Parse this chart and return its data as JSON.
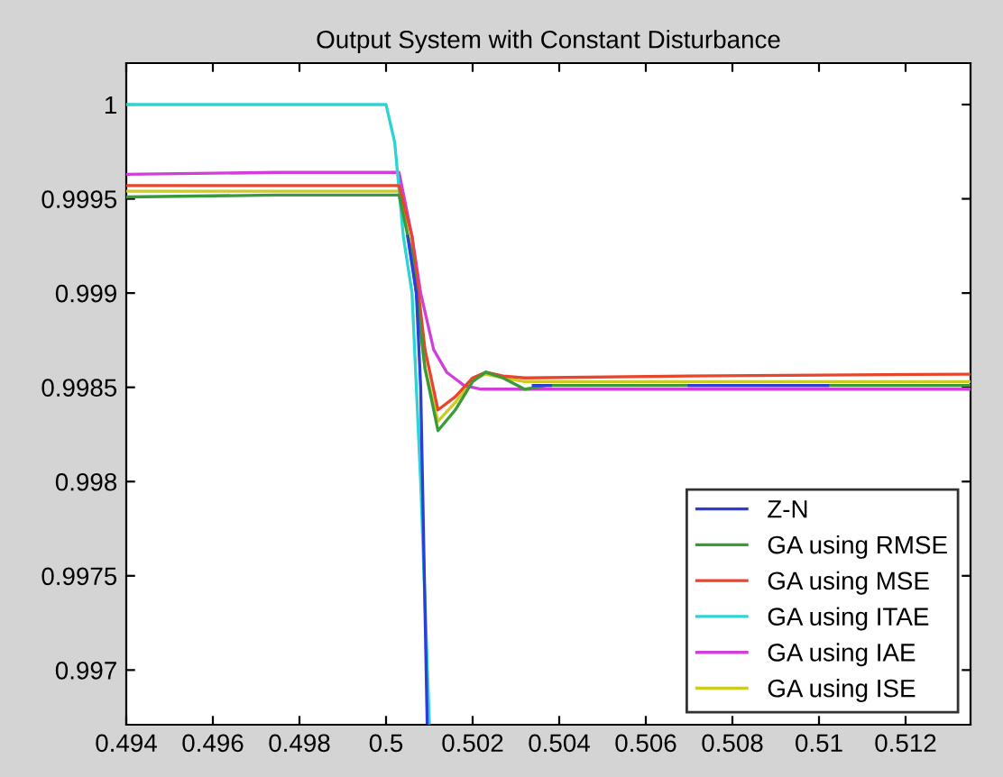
{
  "chart_data": {
    "type": "line",
    "title": "Output System with Constant Disturbance",
    "xlim": [
      0.494,
      0.5135
    ],
    "ylim": [
      0.99671,
      1.00022
    ],
    "xticks": [
      0.494,
      0.496,
      0.498,
      0.5,
      0.502,
      0.504,
      0.506,
      0.508,
      0.51,
      0.512
    ],
    "yticks": [
      0.997,
      0.9975,
      0.998,
      0.9985,
      0.999,
      0.9995,
      1
    ],
    "grid": false,
    "legend": "bottom right",
    "marker": "none",
    "line_style": "solid",
    "series": [
      {
        "name": "Z-N",
        "color": "#2b3fd6",
        "x": [
          0.5005,
          0.5007,
          0.5008,
          0.50095,
          0.5031,
          0.5034,
          0.5038,
          0.5069,
          0.507,
          0.5102
        ],
        "values": [
          0.9993,
          0.999,
          0.9985,
          0.99672,
          null,
          0.99851,
          0.99851,
          null,
          0.99851,
          0.99851
        ]
      },
      {
        "name": "GA using RMSE",
        "color": "#3a9a3a",
        "x": [
          0.494,
          0.4975,
          0.5003,
          0.5006,
          0.5009,
          0.5012,
          0.5016,
          0.502,
          0.5023,
          0.5027,
          0.5032,
          0.5037,
          0.507,
          0.5135
        ],
        "values": [
          0.99951,
          0.99952,
          0.99952,
          0.9992,
          0.9986,
          0.99827,
          0.99838,
          0.99853,
          0.99858,
          0.99855,
          0.99849,
          0.99851,
          0.99851,
          0.99851
        ]
      },
      {
        "name": "GA using MSE",
        "color": "#e8452a",
        "x": [
          0.494,
          0.4975,
          0.5003,
          0.5006,
          0.5009,
          0.5012,
          0.5016,
          0.502,
          0.5023,
          0.5027,
          0.5032,
          0.507,
          0.5135
        ],
        "values": [
          0.99957,
          0.99957,
          0.99957,
          0.9993,
          0.9987,
          0.99838,
          0.99845,
          0.99855,
          0.99858,
          0.99856,
          0.99855,
          0.99856,
          0.99857
        ]
      },
      {
        "name": "GA using ITAE",
        "color": "#2fd3d3",
        "x": [
          0.494,
          0.5,
          0.5002,
          0.5004,
          0.5006,
          0.5008,
          0.501
        ],
        "values": [
          1.0,
          1.0,
          0.9998,
          0.9993,
          0.999,
          0.998,
          0.99672
        ]
      },
      {
        "name": "GA using IAE",
        "color": "#d040d8",
        "x": [
          0.494,
          0.4975,
          0.5003,
          0.5006,
          0.5008,
          0.5011,
          0.5014,
          0.5018,
          0.5022,
          0.507,
          0.5135
        ],
        "values": [
          0.99963,
          0.99964,
          0.99964,
          0.9993,
          0.999,
          0.9987,
          0.99858,
          0.99851,
          0.99849,
          0.99849,
          0.99849
        ]
      },
      {
        "name": "GA using ISE",
        "color": "#cccc22",
        "x": [
          0.494,
          0.4975,
          0.5003,
          0.5006,
          0.5009,
          0.5012,
          0.5016,
          0.502,
          0.5023,
          0.5027,
          0.5032,
          0.507,
          0.5135
        ],
        "values": [
          0.99954,
          0.99954,
          0.99954,
          0.9992,
          0.9986,
          0.99832,
          0.99842,
          0.99854,
          0.99857,
          0.99855,
          0.99853,
          0.99853,
          0.99853
        ]
      }
    ]
  }
}
